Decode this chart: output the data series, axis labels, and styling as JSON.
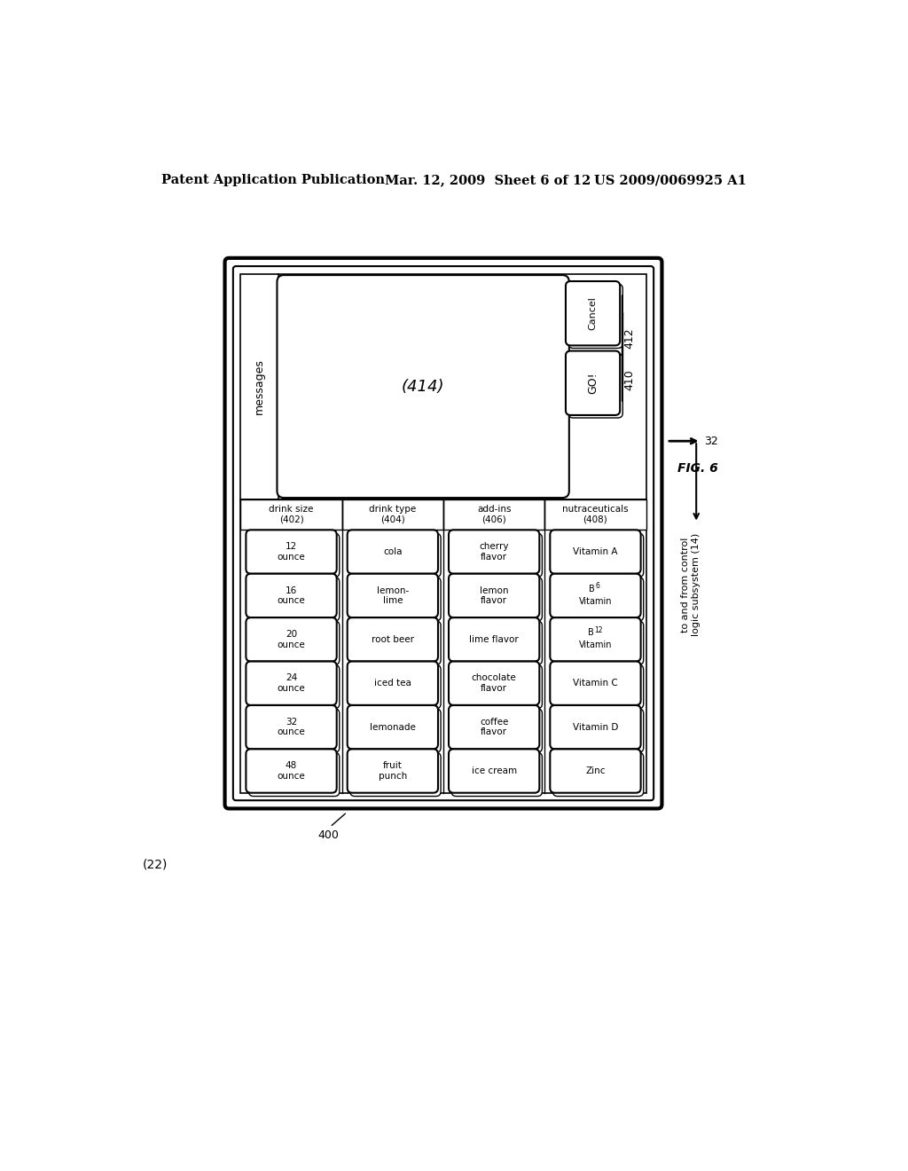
{
  "bg_color": "#ffffff",
  "header_left": "Patent Application Publication",
  "header_mid": "Mar. 12, 2009  Sheet 6 of 12",
  "header_right": "US 2009/0069925 A1",
  "fig_label": "FIG. 6",
  "ref_32": "32",
  "ref_400": "400",
  "ref_22": "(22)",
  "messages_label": "messages",
  "display_area_label": "(414)",
  "cancel_label": "Cancel",
  "go_label": "GO!",
  "ref_412": "412",
  "ref_410": "410",
  "sections": [
    {
      "label": "drink size\n(402)",
      "buttons": [
        "12\nounce",
        "16\nounce",
        "20\nounce",
        "24\nounce",
        "32\nounce",
        "48\nounce"
      ]
    },
    {
      "label": "drink type\n(404)",
      "buttons": [
        "cola",
        "lemon-\nlime",
        "root beer",
        "iced tea",
        "lemonade",
        "fruit\npunch"
      ]
    },
    {
      "label": "add-ins\n(406)",
      "buttons": [
        "cherry\nflavor",
        "lemon\nflavor",
        "lime flavor",
        "chocolate\nflavor",
        "coffee\nflavor",
        "ice cream"
      ]
    },
    {
      "label": "nutraceuticals\n(408)",
      "buttons": [
        "Vitamin A",
        "Vitamin\nB6",
        "Vitamin\nB12",
        "Vitamin C",
        "Vitamin D",
        "Zinc"
      ]
    }
  ],
  "arrow_label": "to and from control\nlogic subsystem (14)"
}
